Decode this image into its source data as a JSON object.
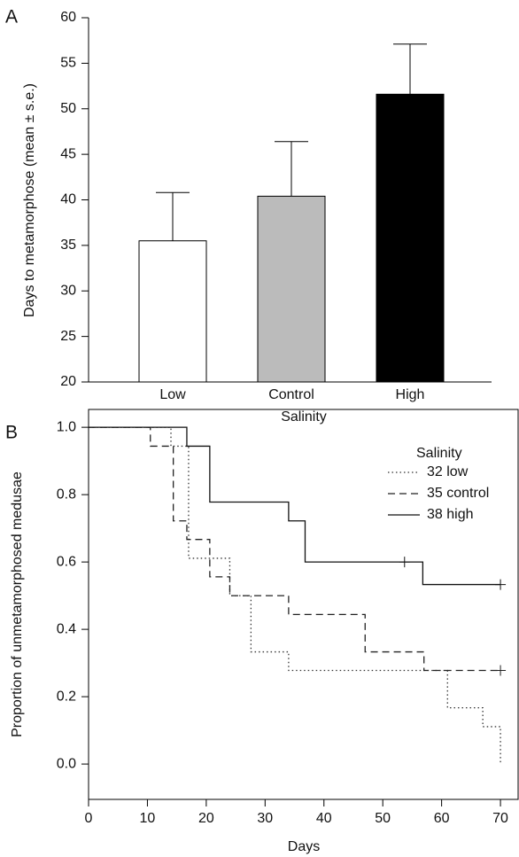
{
  "chart_data": [
    {
      "type": "bar",
      "panel_label": "A",
      "x_label": "Salinity",
      "y_label": "Days to metamorphose (mean ± s.e.)",
      "categories": [
        "Low",
        "Control",
        "High"
      ],
      "values": [
        35.5,
        40.4,
        51.6
      ],
      "errors": [
        5.3,
        6.0,
        5.5
      ],
      "colors": [
        "#ffffff",
        "#bbbbbb",
        "#000000"
      ],
      "ylim": [
        20,
        60
      ],
      "yticks": [
        20,
        25,
        30,
        35,
        40,
        45,
        50,
        55,
        60
      ]
    },
    {
      "type": "step",
      "panel_label": "B",
      "x_label": "Days",
      "y_label": "Proportion of unmetamorphosed medusae",
      "legend_title": "Salinity",
      "legend": "top-right",
      "xlim": [
        0,
        73
      ],
      "xticks": [
        0,
        10,
        20,
        30,
        40,
        50,
        60,
        70
      ],
      "ylim": [
        -0.105,
        1.053
      ],
      "yticks": [
        {
          "value": 0,
          "label": "0.0"
        },
        0.2,
        0.4,
        0.6,
        0.8,
        {
          "value": 1,
          "label": "1.0"
        }
      ],
      "series": [
        {
          "name": "32 low",
          "color": "#333333",
          "dash": "dotted",
          "x": [
            0,
            14,
            17,
            24,
            27.6,
            34,
            61,
            67,
            70
          ],
          "values": [
            1,
            0.944,
            0.611,
            0.5,
            0.333,
            0.278,
            0.167,
            0.111,
            0
          ],
          "censored": []
        },
        {
          "name": "35 control",
          "color": "#222222",
          "dash": "dashed",
          "x": [
            0,
            10.5,
            14.4,
            16.7,
            20.6,
            24,
            34,
            47,
            57,
            70
          ],
          "values": [
            1,
            0.944,
            0.722,
            0.667,
            0.556,
            0.5,
            0.444,
            0.333,
            0.278,
            0.278
          ],
          "censored": [
            70
          ]
        },
        {
          "name": "38 high",
          "color": "#111111",
          "dash": "solid",
          "x": [
            0,
            16.7,
            20.6,
            34,
            36.8,
            56.8,
            70
          ],
          "values": [
            1,
            0.944,
            0.778,
            0.722,
            0.6,
            0.533,
            0.533
          ],
          "censored": [
            53.7,
            70
          ]
        }
      ]
    }
  ]
}
